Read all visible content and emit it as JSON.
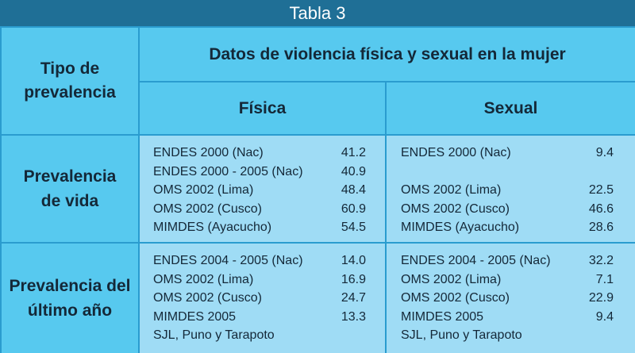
{
  "title": "Tabla 3",
  "header": {
    "col_label": "Tipo de prevalencia",
    "col_label_line1": "Tipo de",
    "col_label_line2": "prevalencia",
    "group_label": "Datos de violencia física y sexual en la mujer",
    "fisica": "Física",
    "sexual": "Sexual"
  },
  "rows": [
    {
      "label_line1": "Prevalencia",
      "label_line2": "de vida",
      "fisica": [
        {
          "source": "ENDES 2000 (Nac)",
          "value": "41.2"
        },
        {
          "source": "ENDES 2000 - 2005 (Nac)",
          "value": "40.9"
        },
        {
          "source": "OMS 2002 (Lima)",
          "value": "48.4"
        },
        {
          "source": "OMS 2002 (Cusco)",
          "value": "60.9"
        },
        {
          "source": "MIMDES (Ayacucho)",
          "value": "54.5"
        }
      ],
      "sexual": [
        {
          "source": "ENDES 2000 (Nac)",
          "value": "9.4"
        },
        {
          "source": "",
          "value": ""
        },
        {
          "source": "OMS 2002 (Lima)",
          "value": "22.5"
        },
        {
          "source": "OMS 2002 (Cusco)",
          "value": "46.6"
        },
        {
          "source": "MIMDES (Ayacucho)",
          "value": "28.6"
        }
      ]
    },
    {
      "label_line1": "Prevalencia del",
      "label_line2": "último año",
      "fisica": [
        {
          "source": "ENDES 2004 - 2005 (Nac)",
          "value": "14.0"
        },
        {
          "source": "OMS 2002 (Lima)",
          "value": "16.9"
        },
        {
          "source": "OMS 2002 (Cusco)",
          "value": "24.7"
        },
        {
          "source": "MIMDES 2005",
          "value": "13.3"
        },
        {
          "source": "SJL, Puno y Tarapoto",
          "value": ""
        }
      ],
      "sexual": [
        {
          "source": "ENDES 2004 - 2005 (Nac)",
          "value": "32.2"
        },
        {
          "source": "OMS 2002 (Lima)",
          "value": "7.1"
        },
        {
          "source": "OMS 2002 (Cusco)",
          "value": "22.9"
        },
        {
          "source": "MIMDES 2005",
          "value": "9.4"
        },
        {
          "source": "SJL, Puno y Tarapoto",
          "value": ""
        }
      ]
    }
  ],
  "colors": {
    "title_bar": "#1f6f96",
    "border": "#2a9ccf",
    "header_fill": "#57c9ef",
    "data_fill": "#9fdcf5"
  }
}
